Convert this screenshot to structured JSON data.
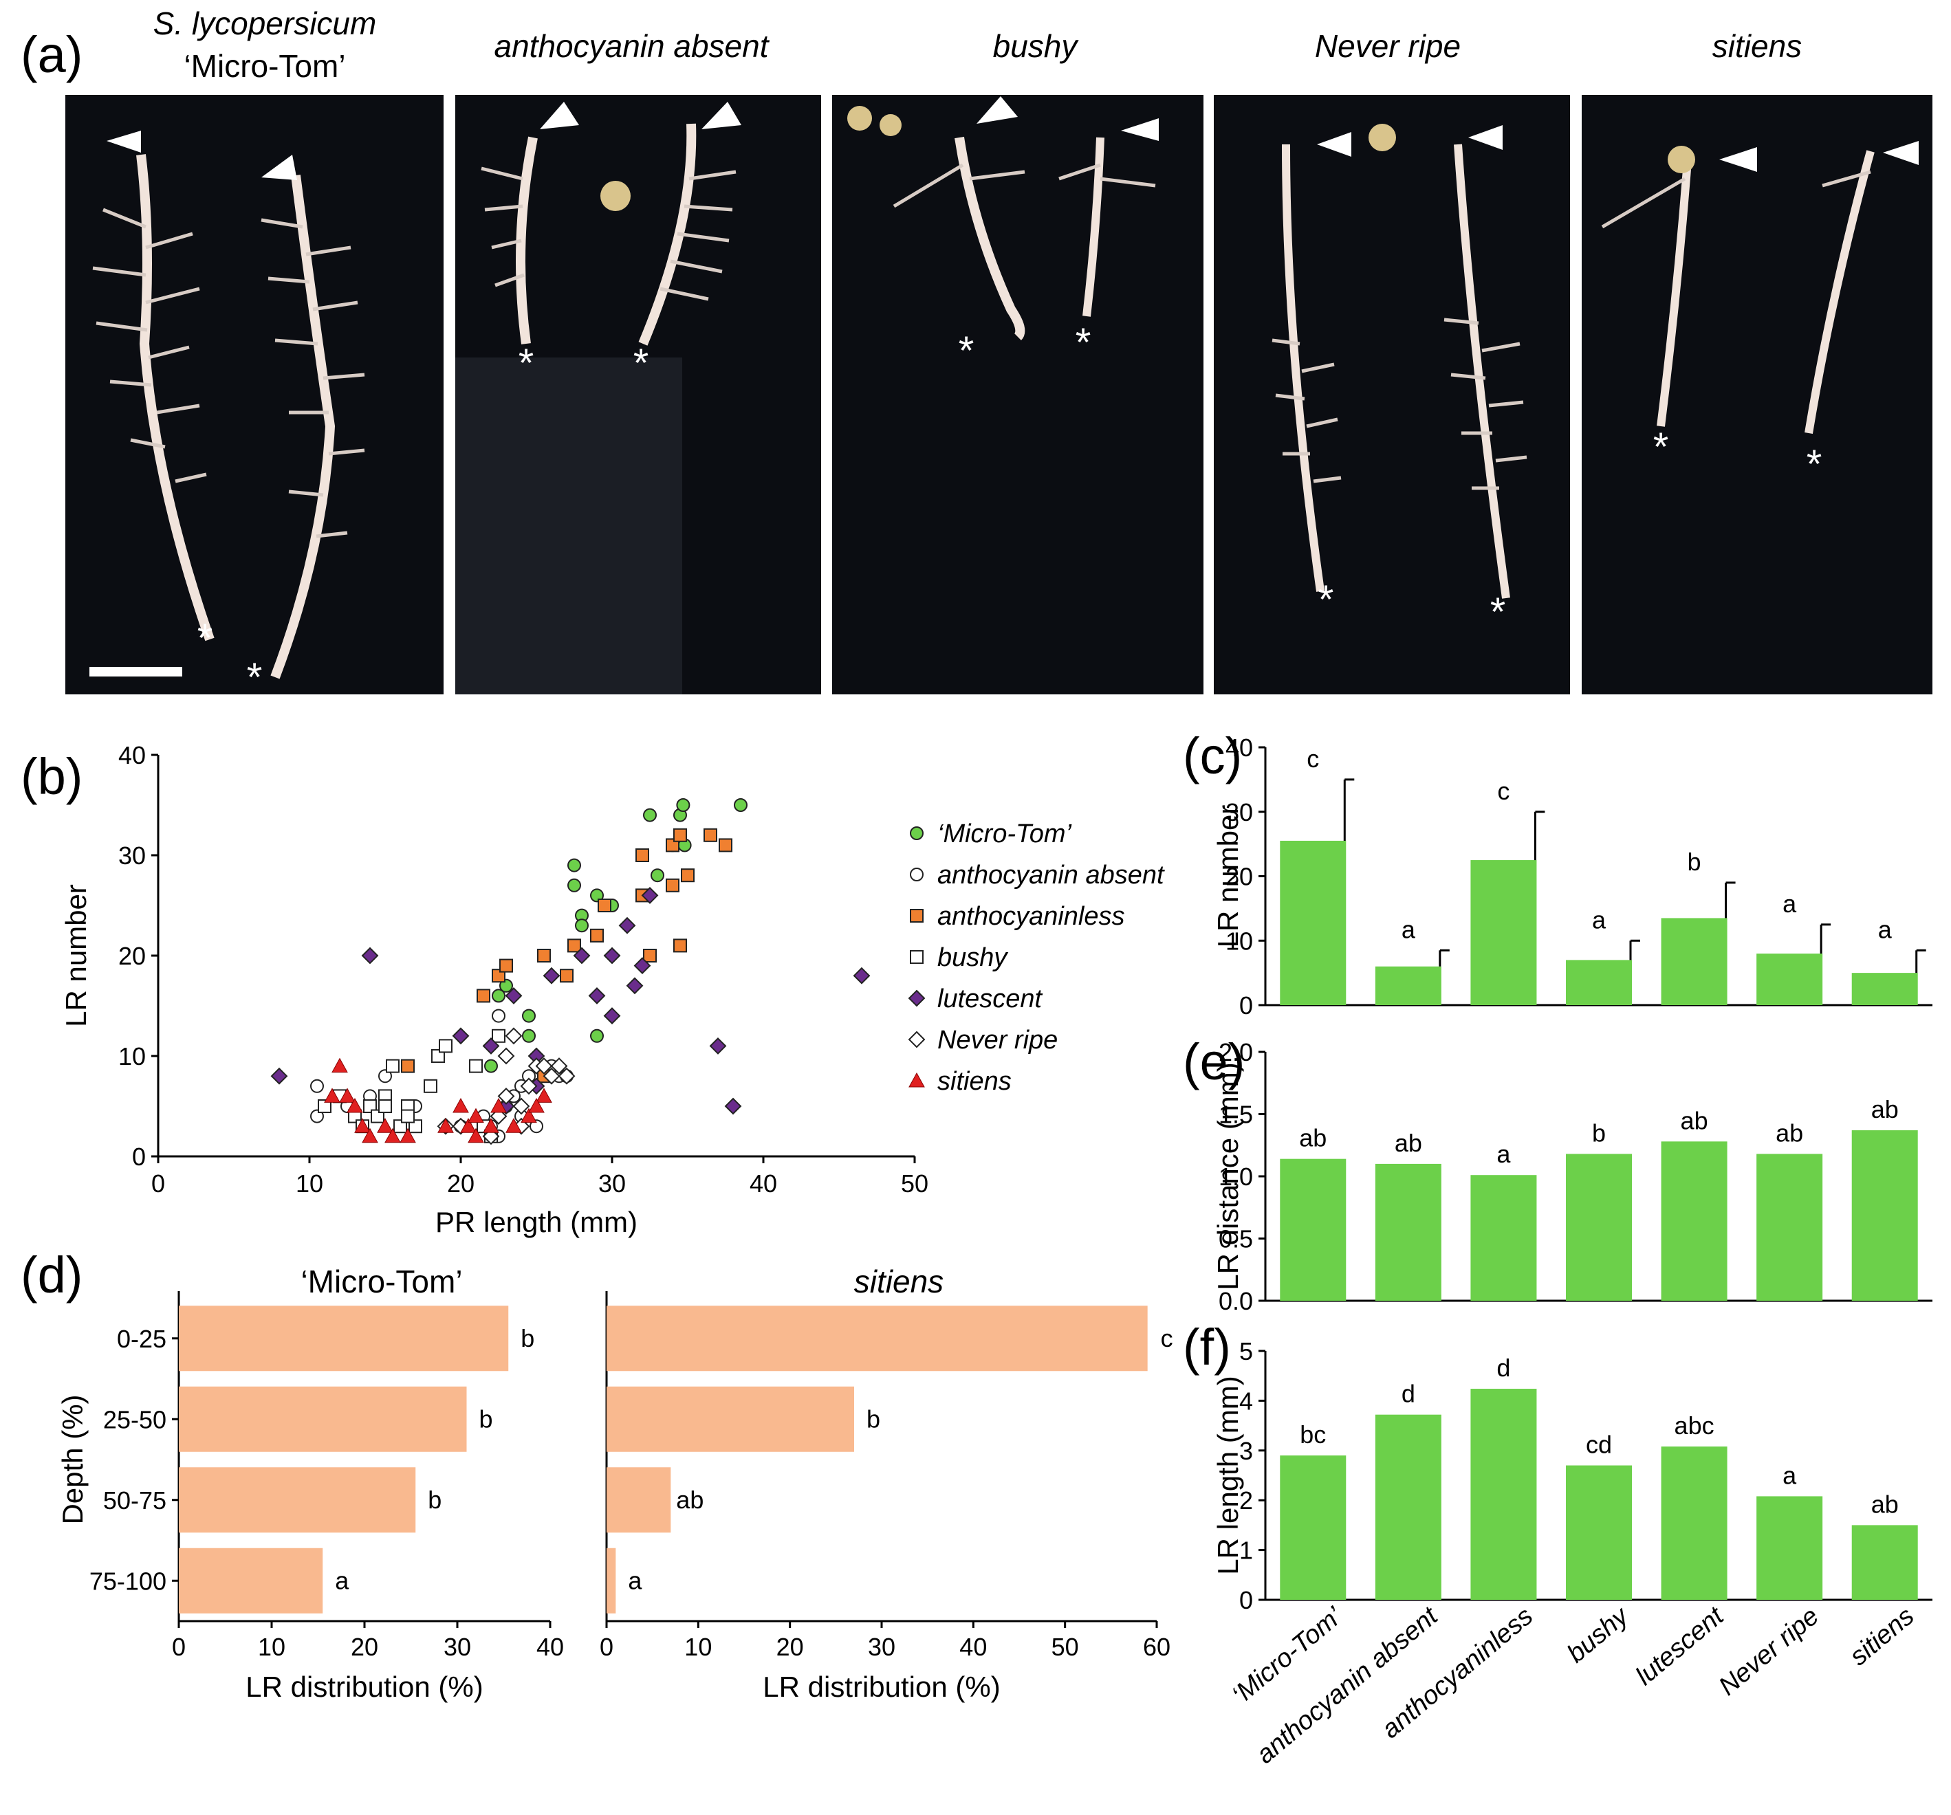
{
  "colors": {
    "green": "#6cd04a",
    "green_dark": "#3a8f28",
    "orange": "#f08030",
    "purple": "#6a2c8c",
    "red": "#e02020",
    "salmon": "#f9b98f",
    "photo_bg": "#0b0d12",
    "root": "#f1e4dc"
  },
  "panel_labels": {
    "a": "(a)",
    "b": "(b)",
    "c": "(c)",
    "d": "(d)",
    "e": "(e)",
    "f": "(f)"
  },
  "panel_a": {
    "titles": [
      {
        "line1": "S. lycopersicum",
        "line2": "‘Micro-Tom’"
      },
      {
        "line1": "anthocyanin absent"
      },
      {
        "line1": "bushy"
      },
      {
        "line1": "Never ripe"
      },
      {
        "line1": "sitiens"
      }
    ],
    "tip_marker": "*"
  },
  "chart_data": [
    {
      "panel": "b",
      "type": "scatter",
      "xlabel": "PR length (mm)",
      "ylabel": "LR number",
      "xlim": [
        0,
        50
      ],
      "ylim": [
        0,
        40
      ],
      "xticks": [
        0,
        10,
        20,
        30,
        40,
        50
      ],
      "yticks": [
        0,
        10,
        20,
        30,
        40
      ],
      "legend": "right",
      "series": [
        {
          "name": "‘Micro-Tom’",
          "marker": "circle-green",
          "points": [
            [
              22,
              9
            ],
            [
              22.5,
              16
            ],
            [
              23,
              17
            ],
            [
              24.5,
              12
            ],
            [
              24.5,
              14
            ],
            [
              27.5,
              29
            ],
            [
              27.5,
              27
            ],
            [
              28,
              24
            ],
            [
              28,
              23
            ],
            [
              29,
              26
            ],
            [
              29,
              12
            ],
            [
              30,
              25
            ],
            [
              32.5,
              34
            ],
            [
              33,
              28
            ],
            [
              34,
              31
            ],
            [
              34.5,
              34
            ],
            [
              34.7,
              35
            ],
            [
              34.8,
              31
            ],
            [
              38.5,
              35
            ]
          ]
        },
        {
          "name": "anthocyanin absent",
          "marker": "circle-open",
          "points": [
            [
              10.5,
              4
            ],
            [
              10.5,
              7
            ],
            [
              11,
              5
            ],
            [
              12.5,
              5
            ],
            [
              14,
              6
            ],
            [
              15,
              8
            ],
            [
              16.5,
              3
            ],
            [
              17,
              5
            ],
            [
              20,
              3
            ],
            [
              21,
              3
            ],
            [
              21.5,
              4
            ],
            [
              22,
              3
            ],
            [
              22.5,
              2
            ],
            [
              22.5,
              14
            ],
            [
              23.5,
              6
            ],
            [
              24,
              7
            ],
            [
              24.5,
              8
            ],
            [
              25,
              3
            ],
            [
              26,
              9
            ],
            [
              26.5,
              8
            ],
            [
              27,
              8
            ],
            [
              23,
              5
            ],
            [
              24,
              4
            ]
          ]
        },
        {
          "name": "anthocyaninless",
          "marker": "square-orange",
          "points": [
            [
              16.5,
              9
            ],
            [
              21.5,
              16
            ],
            [
              22.5,
              18
            ],
            [
              23,
              19
            ],
            [
              25.5,
              8
            ],
            [
              27,
              18
            ],
            [
              25.5,
              20
            ],
            [
              27.5,
              21
            ],
            [
              29,
              22
            ],
            [
              29.5,
              25
            ],
            [
              32,
              26
            ],
            [
              32,
              30
            ],
            [
              32.5,
              20
            ],
            [
              34,
              27
            ],
            [
              34,
              31
            ],
            [
              34.5,
              32
            ],
            [
              34.5,
              21
            ],
            [
              35,
              28
            ],
            [
              36.5,
              32
            ],
            [
              37.5,
              31
            ]
          ]
        },
        {
          "name": "bushy",
          "marker": "square-open",
          "points": [
            [
              11,
              5
            ],
            [
              12,
              6
            ],
            [
              13,
              4
            ],
            [
              13.5,
              3
            ],
            [
              14,
              5
            ],
            [
              14.5,
              4
            ],
            [
              15,
              6
            ],
            [
              15.5,
              9
            ],
            [
              16,
              3
            ],
            [
              16.5,
              5
            ],
            [
              17,
              3
            ],
            [
              18,
              7
            ],
            [
              18.5,
              10
            ],
            [
              19,
              11
            ],
            [
              21,
              9
            ],
            [
              21.5,
              3
            ],
            [
              22,
              2
            ],
            [
              22.5,
              12
            ],
            [
              15,
              5
            ],
            [
              16.5,
              4
            ]
          ]
        },
        {
          "name": "lutescent",
          "marker": "diamond-purple",
          "points": [
            [
              8,
              8
            ],
            [
              14,
              20
            ],
            [
              20,
              12
            ],
            [
              22,
              11
            ],
            [
              23,
              5
            ],
            [
              23.5,
              16
            ],
            [
              25,
              7
            ],
            [
              26,
              18
            ],
            [
              28,
              20
            ],
            [
              29,
              16
            ],
            [
              30,
              14
            ],
            [
              30,
              20
            ],
            [
              31.5,
              17
            ],
            [
              32,
              19
            ],
            [
              32.5,
              26
            ],
            [
              37,
              11
            ],
            [
              38,
              5
            ],
            [
              46.5,
              18
            ],
            [
              25,
              10
            ],
            [
              31,
              23
            ]
          ]
        },
        {
          "name": "Never ripe",
          "marker": "diamond-open",
          "points": [
            [
              19,
              3
            ],
            [
              20,
              3
            ],
            [
              22,
              2
            ],
            [
              22.5,
              4
            ],
            [
              23,
              10
            ],
            [
              23.5,
              12
            ],
            [
              24,
              3
            ],
            [
              24.5,
              7
            ],
            [
              25,
              9
            ],
            [
              25.5,
              9
            ],
            [
              26,
              8
            ],
            [
              26.5,
              9
            ],
            [
              27,
              8
            ],
            [
              24,
              5
            ],
            [
              23,
              6
            ]
          ]
        },
        {
          "name": "sitiens",
          "marker": "triangle-red",
          "points": [
            [
              11.5,
              6
            ],
            [
              12,
              9
            ],
            [
              12.5,
              6
            ],
            [
              13,
              5
            ],
            [
              13.5,
              3
            ],
            [
              14,
              2
            ],
            [
              15,
              3
            ],
            [
              15.5,
              2
            ],
            [
              16.5,
              2
            ],
            [
              19,
              3
            ],
            [
              20,
              5
            ],
            [
              20.5,
              3
            ],
            [
              21,
              2
            ],
            [
              21,
              4
            ],
            [
              22,
              3
            ],
            [
              22.5,
              5
            ],
            [
              23.5,
              3
            ],
            [
              24.5,
              4
            ],
            [
              25.5,
              6
            ],
            [
              25,
              5
            ]
          ]
        }
      ]
    },
    {
      "panel": "c",
      "type": "bar",
      "ylabel": "LR number",
      "ylim": [
        0,
        40
      ],
      "yticks": [
        0,
        10,
        20,
        30,
        40
      ],
      "categories": [
        "‘Micro-Tom’",
        "anthocyanin absent",
        "anthocyaninless",
        "bushy",
        "lutescent",
        "Never ripe",
        "sitiens"
      ],
      "values": [
        25.5,
        6,
        22.5,
        7,
        13.5,
        8,
        5
      ],
      "errors": [
        9.5,
        2.5,
        7.5,
        3,
        5.5,
        4.5,
        3.5
      ],
      "letters": [
        "c",
        "a",
        "c",
        "a",
        "b",
        "a",
        "a"
      ]
    },
    {
      "panel": "e",
      "type": "bar",
      "ylabel": "LR distance (mm)",
      "ylim": [
        0,
        2.0
      ],
      "yticks": [
        "0.0",
        "0.5",
        "1.0",
        "1.5",
        "2.0"
      ],
      "categories": [
        "‘Micro-Tom’",
        "anthocyanin absent",
        "anthocyaninless",
        "bushy",
        "lutescent",
        "Never ripe",
        "sitiens"
      ],
      "values": [
        1.14,
        1.1,
        1.01,
        1.18,
        1.28,
        1.18,
        1.37
      ],
      "letters": [
        "ab",
        "ab",
        "a",
        "b",
        "ab",
        "ab",
        "ab"
      ]
    },
    {
      "panel": "f",
      "type": "bar",
      "ylabel": "LR length (mm)",
      "ylim": [
        0,
        5
      ],
      "yticks": [
        0,
        1,
        2,
        3,
        4,
        5
      ],
      "categories": [
        "‘Micro-Tom’",
        "anthocyanin absent",
        "anthocyaninless",
        "bushy",
        "lutescent",
        "Never ripe",
        "sitiens"
      ],
      "values": [
        2.9,
        3.72,
        4.24,
        2.7,
        3.08,
        2.08,
        1.5
      ],
      "letters": [
        "bc",
        "d",
        "d",
        "cd",
        "abc",
        "a",
        "ab"
      ]
    },
    {
      "panel": "d-left",
      "type": "bar",
      "orientation": "horizontal",
      "title": "‘Micro-Tom’",
      "xlabel": "LR distribution (%)",
      "ylabel": "Depth (%)",
      "xlim": [
        0,
        40
      ],
      "xticks": [
        0,
        10,
        20,
        30,
        40
      ],
      "categories": [
        "0-25",
        "25-50",
        "50-75",
        "75-100"
      ],
      "values": [
        35.5,
        31,
        25.5,
        15.5
      ],
      "letters": [
        "b",
        "b",
        "b",
        "a"
      ]
    },
    {
      "panel": "d-right",
      "type": "bar",
      "orientation": "horizontal",
      "title": "sitiens",
      "xlabel": "LR distribution (%)",
      "xlim": [
        0,
        60
      ],
      "xticks": [
        0,
        10,
        20,
        30,
        40,
        50,
        60
      ],
      "categories": [
        "0-25",
        "25-50",
        "50-75",
        "75-100"
      ],
      "values": [
        59,
        27,
        7,
        1
      ],
      "letters": [
        "c",
        "b",
        "ab",
        "a"
      ]
    }
  ]
}
